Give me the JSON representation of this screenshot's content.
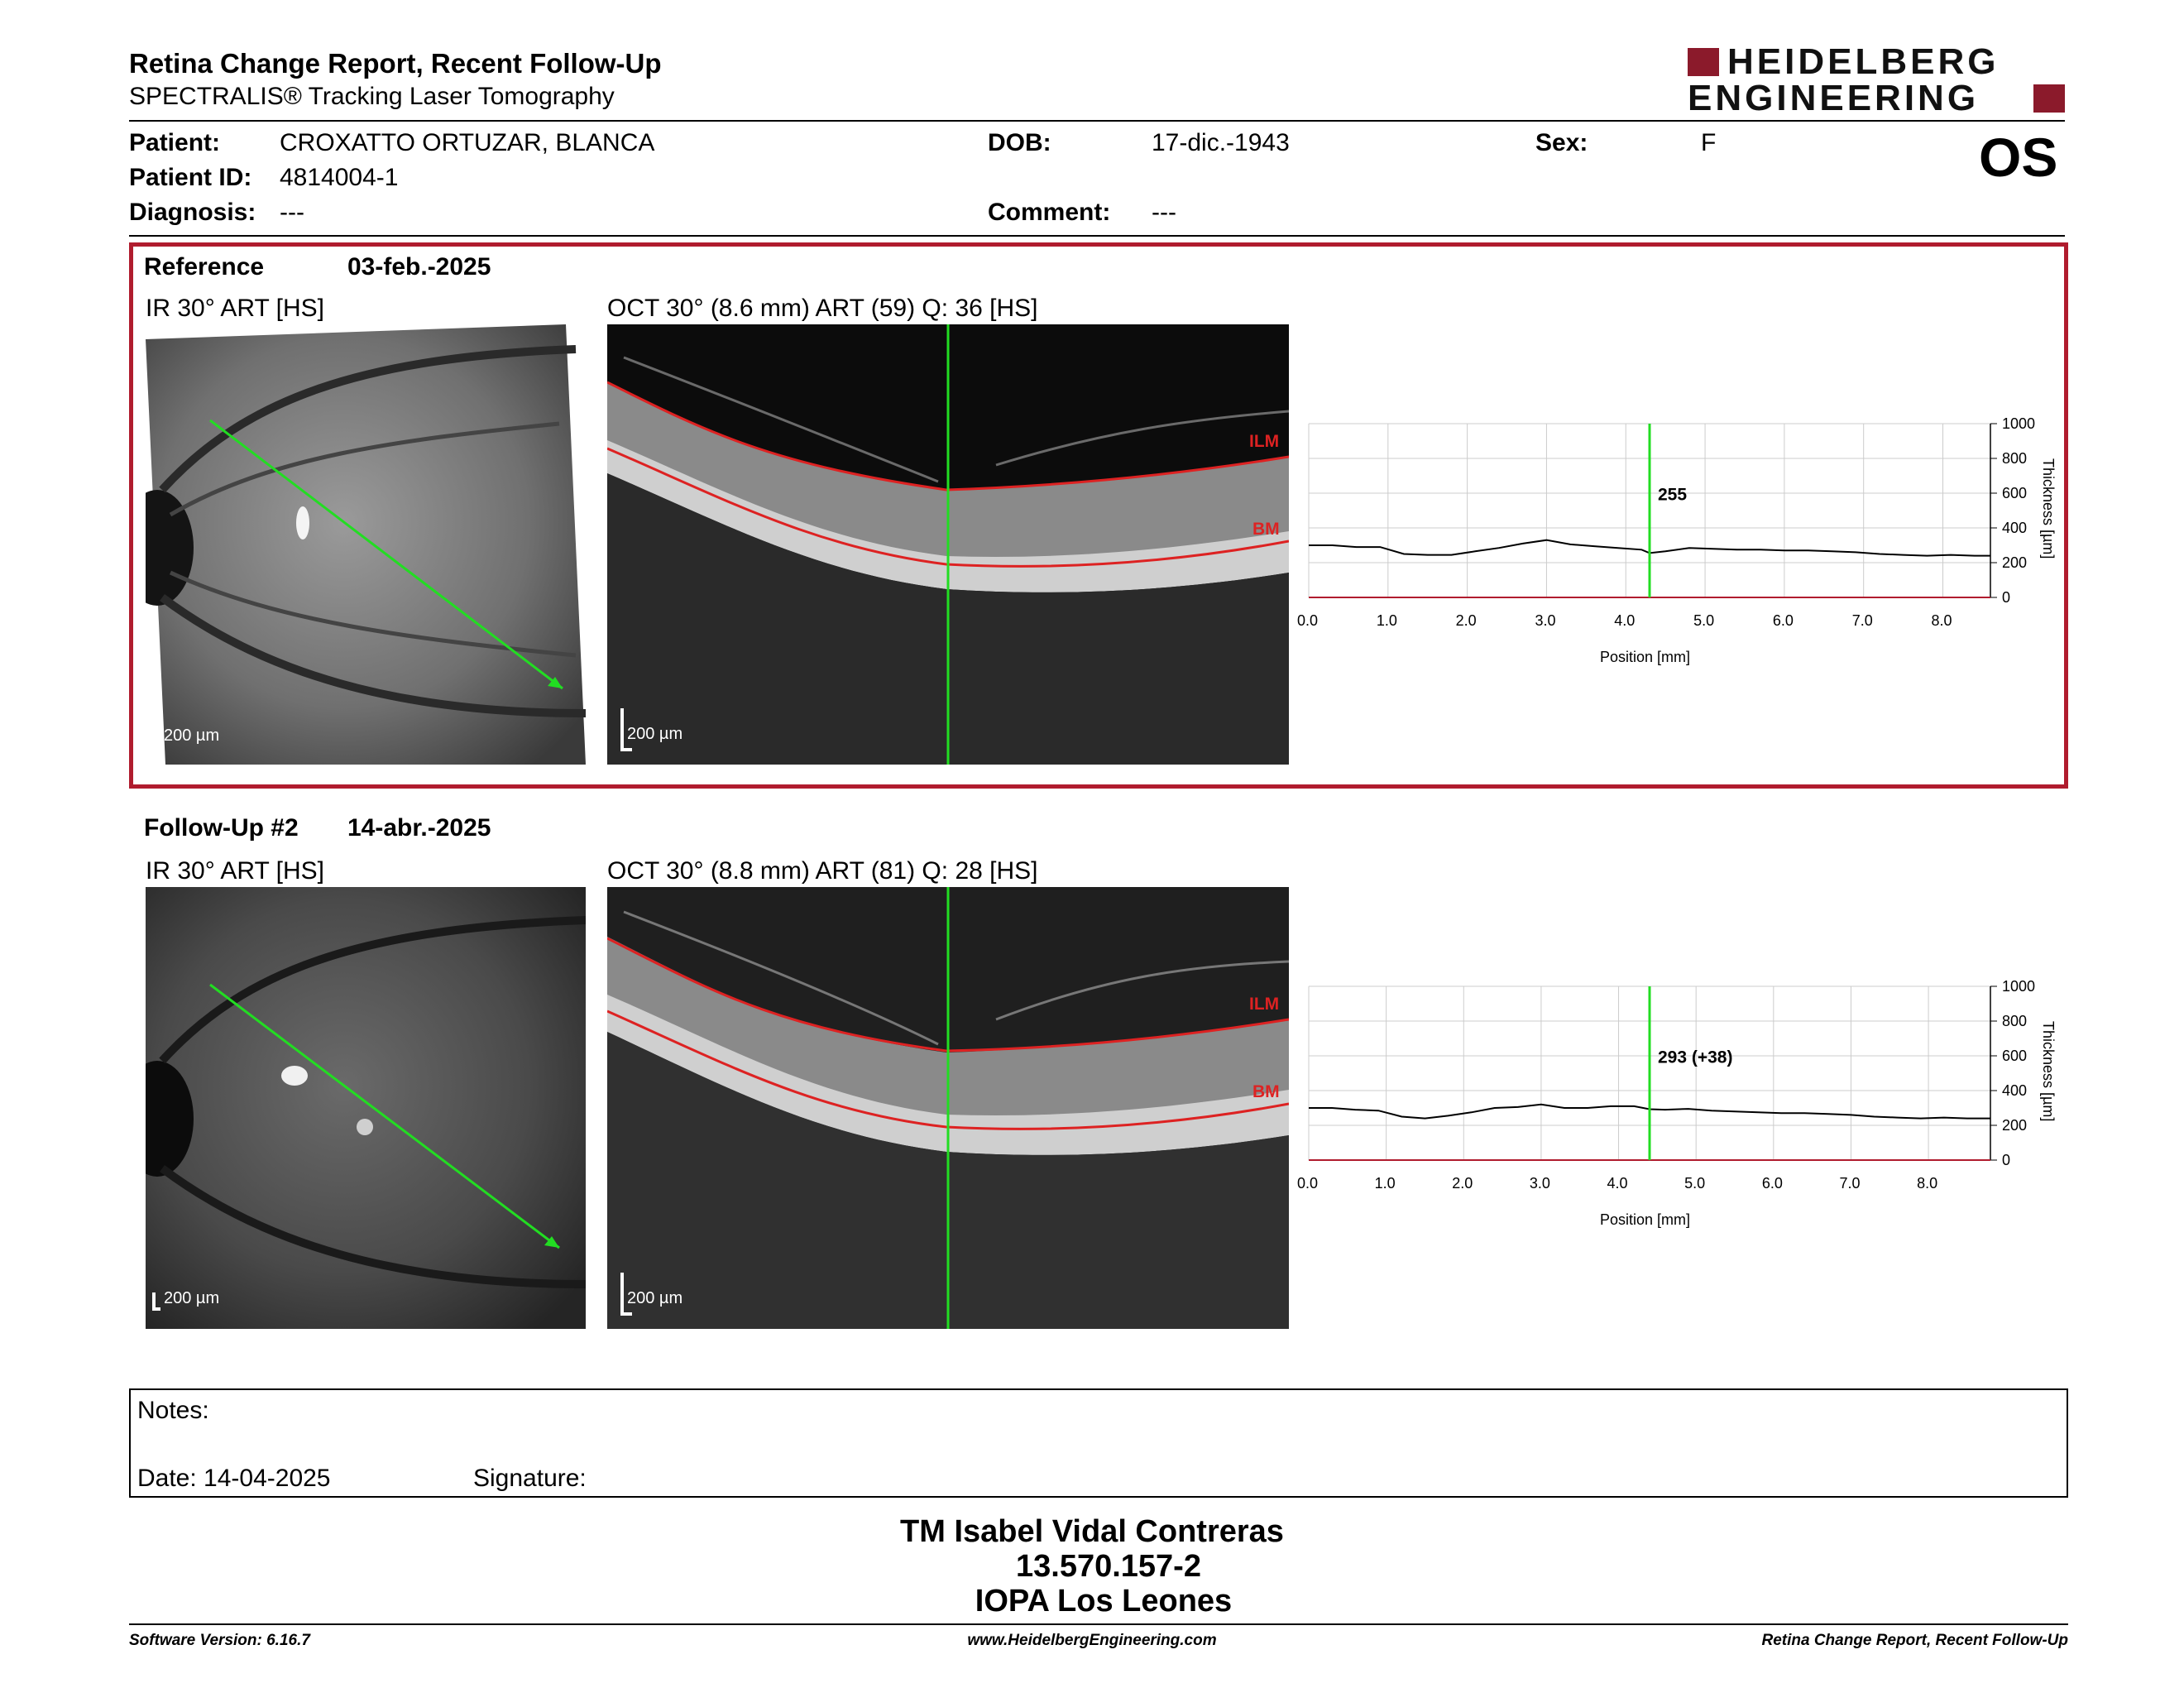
{
  "header": {
    "title": "Retina Change Report, Recent Follow-Up",
    "subtitle": "SPECTRALIS® Tracking Laser Tomography",
    "logo_line1": "HEIDELBERG",
    "logo_line2": "ENGINEERING",
    "eye": "OS"
  },
  "patient": {
    "patient_label": "Patient:",
    "patient_value": "CROXATTO ORTUZAR, BLANCA",
    "id_label": "Patient ID:",
    "id_value": "4814004-1",
    "diagnosis_label": "Diagnosis:",
    "diagnosis_value": "---",
    "dob_label": "DOB:",
    "dob_value": "17-dic.-1943",
    "comment_label": "Comment:",
    "comment_value": "---",
    "sex_label": "Sex:",
    "sex_value": "F"
  },
  "reference": {
    "label": "Reference",
    "date": "03-feb.-2025",
    "ir_title": "IR 30° ART [HS]",
    "oct_title": "OCT 30° (8.6 mm) ART (59) Q: 36 [HS]",
    "ir_scale": "200 µm",
    "oct_scale": "200 µm",
    "ilm": "ILM",
    "bm": "BM"
  },
  "followup": {
    "label": "Follow-Up #2",
    "date": "14-abr.-2025",
    "ir_title": "IR 30° ART [HS]",
    "oct_title": "OCT 30° (8.8 mm) ART (81) Q: 28 [HS]",
    "ir_scale": "200 µm",
    "oct_scale": "200 µm",
    "ilm": "ILM",
    "bm": "BM"
  },
  "chart_data": [
    {
      "type": "line",
      "xlabel": "Position [mm]",
      "ylabel": "Thickness [µm]",
      "xlim": [
        0,
        8.6
      ],
      "ylim": [
        0,
        1000
      ],
      "xticks": [
        "0.0",
        "1.0",
        "2.0",
        "3.0",
        "4.0",
        "5.0",
        "6.0",
        "7.0",
        "8.0"
      ],
      "yticks": [
        "0",
        "200",
        "400",
        "600",
        "800",
        "1000"
      ],
      "grid": true,
      "cursor_x": 4.3,
      "cursor_label": "255",
      "series": [
        {
          "x": [
            0,
            0.3,
            0.6,
            0.9,
            1.2,
            1.5,
            1.8,
            2.1,
            2.4,
            2.7,
            3.0,
            3.3,
            3.6,
            3.9,
            4.2,
            4.3,
            4.5,
            4.8,
            5.1,
            5.4,
            5.7,
            6.0,
            6.3,
            6.6,
            6.9,
            7.2,
            7.5,
            7.8,
            8.1,
            8.4,
            8.6
          ],
          "y": [
            300,
            300,
            290,
            290,
            250,
            245,
            245,
            265,
            285,
            310,
            330,
            305,
            295,
            285,
            275,
            255,
            265,
            285,
            280,
            275,
            275,
            270,
            270,
            265,
            260,
            250,
            245,
            240,
            245,
            240,
            240
          ]
        }
      ]
    },
    {
      "type": "line",
      "xlabel": "Position [mm]",
      "ylabel": "Thickness [µm]",
      "xlim": [
        0,
        8.8
      ],
      "ylim": [
        0,
        1000
      ],
      "xticks": [
        "0.0",
        "1.0",
        "2.0",
        "3.0",
        "4.0",
        "5.0",
        "6.0",
        "7.0",
        "8.0"
      ],
      "yticks": [
        "0",
        "200",
        "400",
        "600",
        "800",
        "1000"
      ],
      "grid": true,
      "cursor_x": 4.4,
      "cursor_label": "293 (+38)",
      "series": [
        {
          "x": [
            0,
            0.3,
            0.6,
            0.9,
            1.2,
            1.5,
            1.8,
            2.1,
            2.4,
            2.7,
            3.0,
            3.3,
            3.6,
            3.9,
            4.2,
            4.4,
            4.6,
            4.9,
            5.2,
            5.5,
            5.8,
            6.1,
            6.4,
            6.7,
            7.0,
            7.3,
            7.6,
            7.9,
            8.2,
            8.5,
            8.8
          ],
          "y": [
            300,
            300,
            290,
            285,
            250,
            240,
            255,
            275,
            300,
            305,
            320,
            300,
            300,
            310,
            310,
            293,
            290,
            295,
            285,
            280,
            275,
            270,
            270,
            265,
            260,
            250,
            245,
            240,
            245,
            240,
            240
          ]
        }
      ]
    }
  ],
  "notes": {
    "label": "Notes:",
    "date_label": "Date: 14-04-2025",
    "signature_label": "Signature:"
  },
  "signature": {
    "name": "TM Isabel Vidal Contreras",
    "id": "13.570.157-2",
    "place": "IOPA Los Leones"
  },
  "footer": {
    "left": "Software Version: 6.16.7",
    "center": "www.HeidelbergEngineering.com",
    "right": "Retina Change Report, Recent Follow-Up"
  },
  "colors": {
    "accent": "#b01c2e",
    "scan_line": "#22dd22",
    "layer_line": "#dd2222"
  }
}
